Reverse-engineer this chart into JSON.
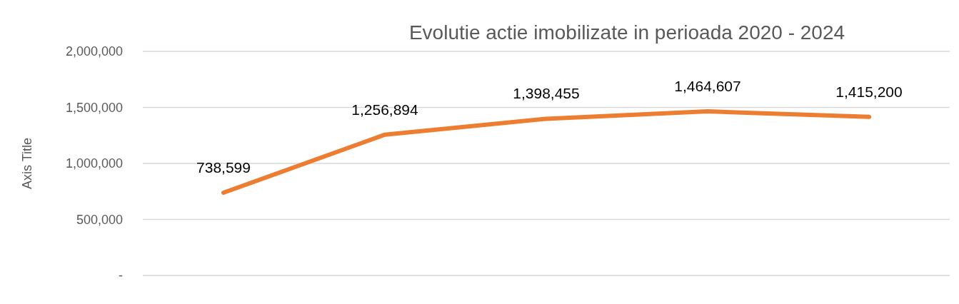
{
  "chart_data": {
    "type": "line",
    "title": "Evolutie actie imobilizate in perioada 2020 - 2024",
    "ylabel": "Axis Title",
    "categories": [
      null,
      null,
      null,
      null,
      null
    ],
    "series": [
      {
        "color": "#ed7d31",
        "values": [
          738599,
          1256894,
          1398455,
          1464607,
          1415200
        ],
        "value_labels": [
          "738,599",
          "1,256,894",
          "1,398,455",
          "1,464,607",
          "1,415,200"
        ]
      }
    ],
    "ylim": [
      0,
      2000000
    ],
    "yticks": [
      {
        "value": 0,
        "label": "-"
      },
      {
        "value": 500000,
        "label": "500,000"
      },
      {
        "value": 1000000,
        "label": "1,000,000"
      },
      {
        "value": 1500000,
        "label": "1,500,000"
      },
      {
        "value": 2000000,
        "label": "2,000,000"
      }
    ],
    "grid": "y",
    "marker": "none",
    "line_style": "solid"
  }
}
